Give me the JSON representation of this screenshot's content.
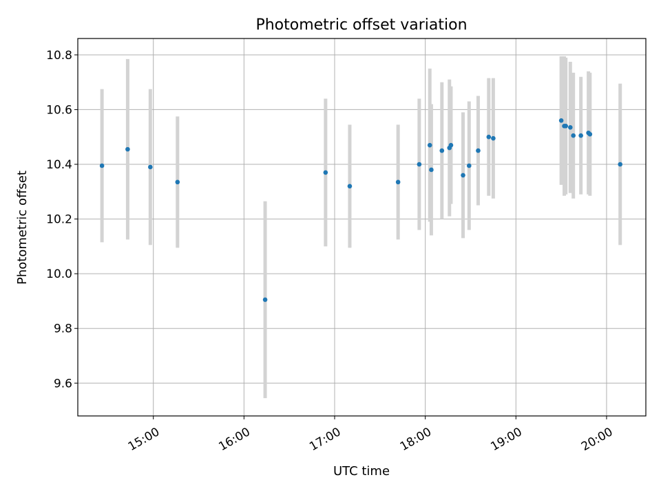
{
  "chart_data": {
    "type": "scatter",
    "title": "Photometric offset variation",
    "xlabel": "UTC time",
    "ylabel": "Photometric offset",
    "xlim": [
      "14:10",
      "20:26"
    ],
    "ylim": [
      9.48,
      10.86
    ],
    "grid": true,
    "x_ticks": [
      "15:00",
      "16:00",
      "17:00",
      "18:00",
      "19:00",
      "20:00"
    ],
    "y_ticks": [
      "9.6",
      "9.8",
      "10.0",
      "10.2",
      "10.4",
      "10.6",
      "10.8"
    ],
    "marker_color": "#1f77b4",
    "errorbar_color": "#d3d3d3",
    "series": [
      {
        "points": [
          {
            "x": "14:26",
            "y": 10.395,
            "err": 0.28
          },
          {
            "x": "14:43",
            "y": 10.455,
            "err": 0.33
          },
          {
            "x": "14:58",
            "y": 10.39,
            "err": 0.285
          },
          {
            "x": "15:16",
            "y": 10.335,
            "err": 0.24
          },
          {
            "x": "16:14",
            "y": 9.905,
            "err": 0.36
          },
          {
            "x": "16:54",
            "y": 10.37,
            "err": 0.27
          },
          {
            "x": "17:10",
            "y": 10.32,
            "err": 0.225
          },
          {
            "x": "17:42",
            "y": 10.335,
            "err": 0.21
          },
          {
            "x": "17:56",
            "y": 10.4,
            "err": 0.24
          },
          {
            "x": "18:03",
            "y": 10.47,
            "err": 0.28
          },
          {
            "x": "18:04",
            "y": 10.38,
            "err": 0.24
          },
          {
            "x": "18:11",
            "y": 10.45,
            "err": 0.25
          },
          {
            "x": "18:16",
            "y": 10.46,
            "err": 0.25
          },
          {
            "x": "18:17",
            "y": 10.47,
            "err": 0.215
          },
          {
            "x": "18:25",
            "y": 10.36,
            "err": 0.23
          },
          {
            "x": "18:29",
            "y": 10.395,
            "err": 0.235
          },
          {
            "x": "18:35",
            "y": 10.45,
            "err": 0.2
          },
          {
            "x": "18:42",
            "y": 10.5,
            "err": 0.215
          },
          {
            "x": "18:45",
            "y": 10.495,
            "err": 0.22
          },
          {
            "x": "19:30",
            "y": 10.56,
            "err": 0.235
          },
          {
            "x": "19:32",
            "y": 10.54,
            "err": 0.255
          },
          {
            "x": "19:33",
            "y": 10.54,
            "err": 0.25
          },
          {
            "x": "19:36",
            "y": 10.535,
            "err": 0.24
          },
          {
            "x": "19:38",
            "y": 10.505,
            "err": 0.23
          },
          {
            "x": "19:43",
            "y": 10.505,
            "err": 0.215
          },
          {
            "x": "19:48",
            "y": 10.515,
            "err": 0.225
          },
          {
            "x": "19:49",
            "y": 10.51,
            "err": 0.225
          },
          {
            "x": "20:09",
            "y": 10.4,
            "err": 0.295
          }
        ]
      }
    ]
  }
}
